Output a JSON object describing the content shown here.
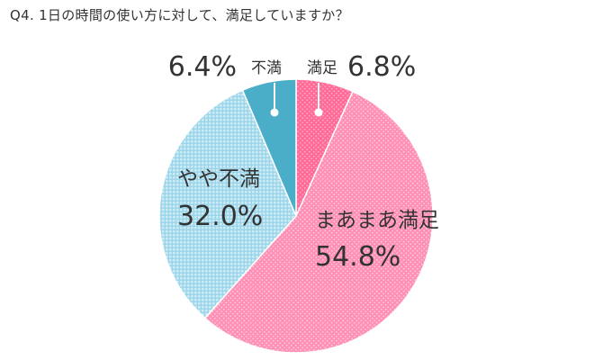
{
  "question": "Q4. 1日の時間の使い方に対して、満足していますか？",
  "chart_data": {
    "type": "pie",
    "title": "Q4. 1日の時間の使い方に対して、満足していますか？",
    "start": "top",
    "direction": "clockwise",
    "legend": "none",
    "slices": [
      {
        "label": "満足",
        "value": 6.8,
        "value_text": "6.8%",
        "color": "#ff6a96",
        "pattern": "dots"
      },
      {
        "label": "まあまあ満足",
        "value": 54.8,
        "value_text": "54.8%",
        "color": "#ff8fb4",
        "pattern": "dots"
      },
      {
        "label": "やや不満",
        "value": 32.0,
        "value_text": "32.0%",
        "color": "#8ecfe6",
        "pattern": "grid"
      },
      {
        "label": "不満",
        "value": 6.4,
        "value_text": "6.4%",
        "color": "#4aaec9",
        "pattern": "none"
      }
    ]
  }
}
